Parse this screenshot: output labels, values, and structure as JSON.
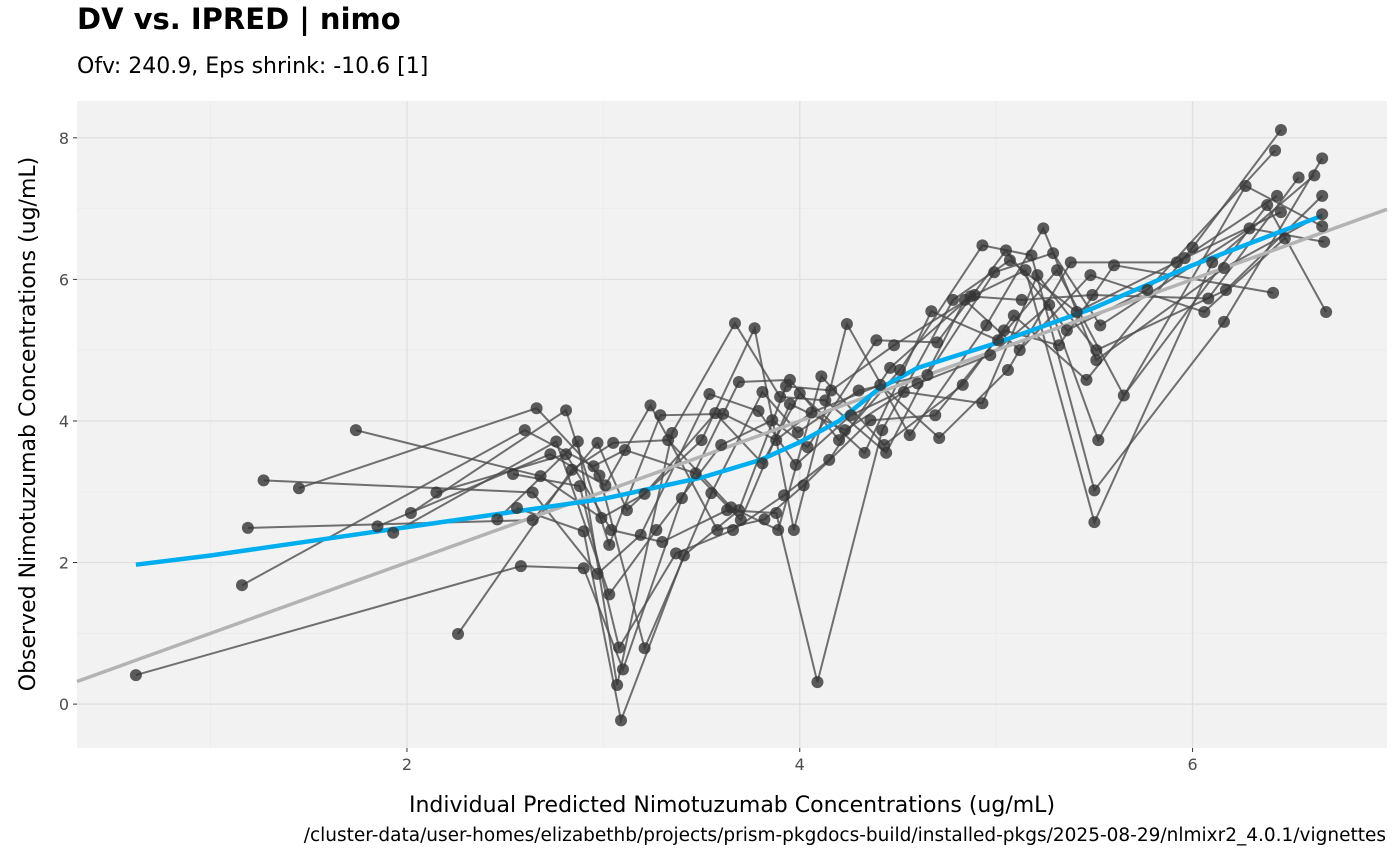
{
  "title": "DV vs. IPRED | nimo",
  "subtitle": "Ofv: 240.9, Eps shrink: -10.6 [1]",
  "caption": "/cluster-data/user-homes/elizabethb/projects/prism-pkgdocs-build/installed-pkgs/2025-08-29/nlmixr2_4.0.1/vignettes",
  "colors": {
    "panel": "#f2f2f2",
    "grid": "#e0e0e0",
    "points": "#333333",
    "lines": "#4d4d4d",
    "smooth": "#00aeef",
    "identity": "#b3b3b3"
  },
  "chart_data": {
    "type": "scatter",
    "title": "DV vs. IPRED | nimo",
    "subtitle": "Ofv: 240.9, Eps shrink: -10.6 [1]",
    "xlabel": "Individual Predicted Nimotuzumab Concentrations (ug/mL)",
    "ylabel": "Observed Nimotuzumab Concentrations (ug/mL)",
    "xlim": [
      0.32,
      6.99
    ],
    "ylim": [
      -0.62,
      8.52
    ],
    "xticks": [
      2,
      4,
      6
    ],
    "yticks": [
      0,
      2,
      4,
      6,
      8
    ],
    "grid": true,
    "points": [
      [
        0.62,
        0.41
      ],
      [
        1.16,
        1.68
      ],
      [
        1.19,
        2.49
      ],
      [
        1.27,
        3.16
      ],
      [
        1.45,
        3.05
      ],
      [
        1.74,
        3.87
      ],
      [
        1.85,
        2.51
      ],
      [
        1.93,
        2.42
      ],
      [
        2.02,
        2.7
      ],
      [
        2.15,
        2.99
      ],
      [
        2.26,
        0.99
      ],
      [
        2.46,
        2.61
      ],
      [
        2.54,
        3.25
      ],
      [
        2.56,
        2.77
      ],
      [
        2.58,
        1.95
      ],
      [
        2.6,
        3.87
      ],
      [
        2.64,
        2.6
      ],
      [
        2.64,
        2.99
      ],
      [
        2.66,
        4.18
      ],
      [
        2.68,
        3.22
      ],
      [
        2.73,
        3.53
      ],
      [
        2.76,
        3.71
      ],
      [
        2.81,
        4.15
      ],
      [
        2.81,
        3.53
      ],
      [
        2.84,
        3.31
      ],
      [
        2.87,
        3.71
      ],
      [
        2.88,
        3.08
      ],
      [
        2.9,
        2.44
      ],
      [
        2.9,
        1.92
      ],
      [
        2.95,
        3.36
      ],
      [
        2.97,
        3.69
      ],
      [
        2.97,
        1.84
      ],
      [
        2.98,
        3.23
      ],
      [
        2.99,
        2.63
      ],
      [
        3.01,
        3.09
      ],
      [
        3.03,
        1.55
      ],
      [
        3.03,
        2.25
      ],
      [
        3.04,
        2.46
      ],
      [
        3.05,
        3.69
      ],
      [
        3.07,
        0.27
      ],
      [
        3.08,
        0.8
      ],
      [
        3.09,
        -0.23
      ],
      [
        3.1,
        0.49
      ],
      [
        3.11,
        3.59
      ],
      [
        3.12,
        2.74
      ],
      [
        3.19,
        2.39
      ],
      [
        3.21,
        0.79
      ],
      [
        3.21,
        2.97
      ],
      [
        3.24,
        4.22
      ],
      [
        3.27,
        2.46
      ],
      [
        3.29,
        4.08
      ],
      [
        3.3,
        2.29
      ],
      [
        3.33,
        3.73
      ],
      [
        3.35,
        3.83
      ],
      [
        3.37,
        2.13
      ],
      [
        3.41,
        2.1
      ],
      [
        3.4,
        2.91
      ],
      [
        3.47,
        3.26
      ],
      [
        3.5,
        3.73
      ],
      [
        3.54,
        4.38
      ],
      [
        3.55,
        2.98
      ],
      [
        3.57,
        4.11
      ],
      [
        3.58,
        2.46
      ],
      [
        3.6,
        3.66
      ],
      [
        3.61,
        4.1
      ],
      [
        3.63,
        2.74
      ],
      [
        3.65,
        2.78
      ],
      [
        3.67,
        5.38
      ],
      [
        3.66,
        2.46
      ],
      [
        3.69,
        2.74
      ],
      [
        3.69,
        4.55
      ],
      [
        3.7,
        2.6
      ],
      [
        3.77,
        5.31
      ],
      [
        3.79,
        4.14
      ],
      [
        3.81,
        4.41
      ],
      [
        3.81,
        3.4
      ],
      [
        3.82,
        2.61
      ],
      [
        3.86,
        4.01
      ],
      [
        3.88,
        3.73
      ],
      [
        3.88,
        2.7
      ],
      [
        3.89,
        2.46
      ],
      [
        3.9,
        4.34
      ],
      [
        3.92,
        2.95
      ],
      [
        3.93,
        4.49
      ],
      [
        3.95,
        4.58
      ],
      [
        3.95,
        4.24
      ],
      [
        3.97,
        2.46
      ],
      [
        3.98,
        3.38
      ],
      [
        3.99,
        3.84
      ],
      [
        4.0,
        4.39
      ],
      [
        4.02,
        3.09
      ],
      [
        4.04,
        3.63
      ],
      [
        4.06,
        4.12
      ],
      [
        4.09,
        0.31
      ],
      [
        4.11,
        4.63
      ],
      [
        4.13,
        4.29
      ],
      [
        4.15,
        3.45
      ],
      [
        4.16,
        4.43
      ],
      [
        4.2,
        3.73
      ],
      [
        4.23,
        3.87
      ],
      [
        4.24,
        5.37
      ],
      [
        4.26,
        4.08
      ],
      [
        4.3,
        4.43
      ],
      [
        4.33,
        3.55
      ],
      [
        4.36,
        4.01
      ],
      [
        4.39,
        5.14
      ],
      [
        4.41,
        4.51
      ],
      [
        4.42,
        3.87
      ],
      [
        4.43,
        3.66
      ],
      [
        4.44,
        3.55
      ],
      [
        4.46,
        4.75
      ],
      [
        4.48,
        5.07
      ],
      [
        4.51,
        4.72
      ],
      [
        4.53,
        4.41
      ],
      [
        4.56,
        3.8
      ],
      [
        4.6,
        4.53
      ],
      [
        4.65,
        4.65
      ],
      [
        4.67,
        5.55
      ],
      [
        4.69,
        4.08
      ],
      [
        4.7,
        5.11
      ],
      [
        4.71,
        3.76
      ],
      [
        4.78,
        5.71
      ],
      [
        4.83,
        4.51
      ],
      [
        4.84,
        5.71
      ],
      [
        4.87,
        5.76
      ],
      [
        4.89,
        5.78
      ],
      [
        4.93,
        6.48
      ],
      [
        4.93,
        4.25
      ],
      [
        4.95,
        5.35
      ],
      [
        4.97,
        4.93
      ],
      [
        4.99,
        6.1
      ],
      [
        5.01,
        5.14
      ],
      [
        5.04,
        5.28
      ],
      [
        5.05,
        6.41
      ],
      [
        5.06,
        4.72
      ],
      [
        5.07,
        6.27
      ],
      [
        5.09,
        5.49
      ],
      [
        5.12,
        5.0
      ],
      [
        5.13,
        5.71
      ],
      [
        5.15,
        6.13
      ],
      [
        5.18,
        6.34
      ],
      [
        5.21,
        6.06
      ],
      [
        5.24,
        6.72
      ],
      [
        5.27,
        5.64
      ],
      [
        5.29,
        6.37
      ],
      [
        5.31,
        6.13
      ],
      [
        5.32,
        5.07
      ],
      [
        5.36,
        5.28
      ],
      [
        5.38,
        6.24
      ],
      [
        5.41,
        5.54
      ],
      [
        5.46,
        4.58
      ],
      [
        5.48,
        6.06
      ],
      [
        5.49,
        5.78
      ],
      [
        5.5,
        2.57
      ],
      [
        5.5,
        3.02
      ],
      [
        5.51,
        5.0
      ],
      [
        5.51,
        4.86
      ],
      [
        5.52,
        3.73
      ],
      [
        5.53,
        5.35
      ],
      [
        5.65,
        4.36
      ],
      [
        5.6,
        6.2
      ],
      [
        5.77,
        5.85
      ],
      [
        5.92,
        6.24
      ],
      [
        5.96,
        6.3
      ],
      [
        6.0,
        6.45
      ],
      [
        6.06,
        5.54
      ],
      [
        6.08,
        5.73
      ],
      [
        6.1,
        6.24
      ],
      [
        6.16,
        5.4
      ],
      [
        6.17,
        5.85
      ],
      [
        6.16,
        6.16
      ],
      [
        6.27,
        7.32
      ],
      [
        6.29,
        6.72
      ],
      [
        6.38,
        7.05
      ],
      [
        6.41,
        5.81
      ],
      [
        6.42,
        7.82
      ],
      [
        6.43,
        7.18
      ],
      [
        6.45,
        6.95
      ],
      [
        6.45,
        8.11
      ],
      [
        6.47,
        6.58
      ],
      [
        6.54,
        7.44
      ],
      [
        6.62,
        7.47
      ],
      [
        6.66,
        7.71
      ],
      [
        6.66,
        7.18
      ],
      [
        6.66,
        6.92
      ],
      [
        6.66,
        6.75
      ],
      [
        6.67,
        6.53
      ],
      [
        6.68,
        5.54
      ]
    ],
    "subject_groups": 14,
    "smooth": {
      "x": [
        0.62,
        1.0,
        1.5,
        2.0,
        2.5,
        3.0,
        3.5,
        3.8,
        4.0,
        4.2,
        4.4,
        4.6,
        5.0,
        5.5,
        6.0,
        6.66
      ],
      "y": [
        1.97,
        2.1,
        2.3,
        2.5,
        2.7,
        2.9,
        3.2,
        3.45,
        3.7,
        4.0,
        4.45,
        4.75,
        5.1,
        5.6,
        6.2,
        6.9
      ]
    },
    "identity_line": {
      "slope": 1,
      "intercept": 0
    }
  }
}
